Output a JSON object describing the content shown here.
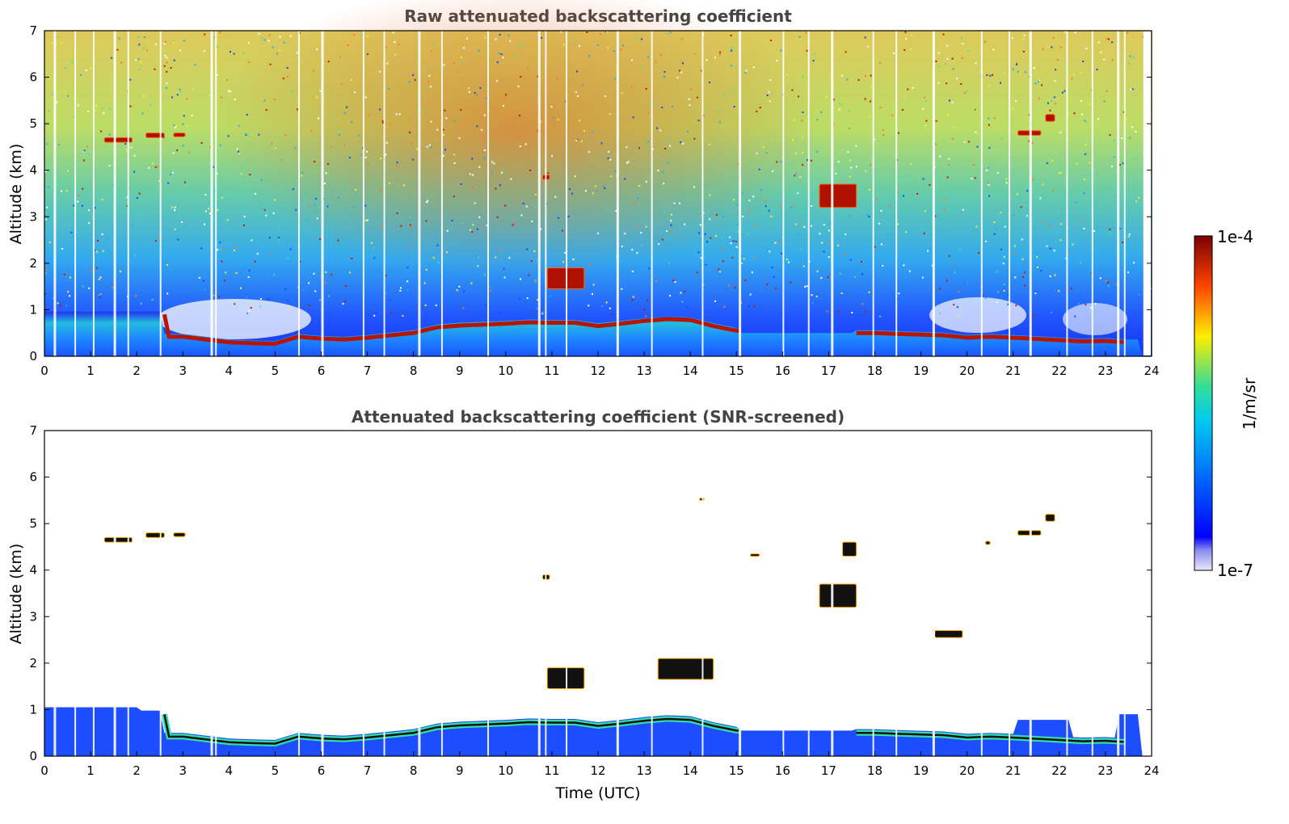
{
  "chart_data": [
    {
      "type": "heatmap",
      "title": "Raw attenuated backscattering coefficient",
      "xlabel": "",
      "ylabel": "Altitude (km)",
      "xlim": [
        0,
        24
      ],
      "ylim": [
        0,
        7
      ],
      "x_ticks": [
        "0",
        "1",
        "2",
        "3",
        "4",
        "5",
        "6",
        "7",
        "8",
        "9",
        "10",
        "11",
        "12",
        "13",
        "14",
        "15",
        "16",
        "17",
        "18",
        "19",
        "20",
        "21",
        "22",
        "23",
        "24"
      ],
      "y_ticks": [
        "0",
        "1",
        "2",
        "3",
        "4",
        "5",
        "6",
        "7"
      ],
      "boundary_layer_top_km": [
        [
          2.6,
          0.42
        ],
        [
          3.0,
          0.42
        ],
        [
          3.5,
          0.36
        ],
        [
          4.0,
          0.3
        ],
        [
          4.5,
          0.28
        ],
        [
          5.0,
          0.27
        ],
        [
          5.5,
          0.42
        ],
        [
          6.0,
          0.38
        ],
        [
          6.5,
          0.36
        ],
        [
          7.0,
          0.4
        ],
        [
          7.5,
          0.45
        ],
        [
          8.0,
          0.5
        ],
        [
          8.5,
          0.62
        ],
        [
          9.0,
          0.66
        ],
        [
          9.5,
          0.68
        ],
        [
          10.0,
          0.7
        ],
        [
          10.5,
          0.73
        ],
        [
          11.0,
          0.72
        ],
        [
          11.5,
          0.72
        ],
        [
          12.0,
          0.65
        ],
        [
          12.5,
          0.7
        ],
        [
          13.0,
          0.76
        ],
        [
          13.5,
          0.8
        ],
        [
          14.0,
          0.78
        ],
        [
          14.5,
          0.65
        ],
        [
          15.0,
          0.55
        ],
        [
          17.5,
          0.5
        ],
        [
          18.0,
          0.5
        ],
        [
          18.5,
          0.48
        ],
        [
          19.5,
          0.45
        ],
        [
          20.0,
          0.4
        ],
        [
          20.5,
          0.42
        ],
        [
          21.0,
          0.4
        ],
        [
          22.5,
          0.32
        ],
        [
          23.0,
          0.33
        ],
        [
          23.5,
          0.3
        ]
      ],
      "cloud_features": [
        {
          "time": [
            1.3,
            1.9
          ],
          "altitude_km": [
            4.6,
            4.7
          ]
        },
        {
          "time": [
            2.2,
            2.6
          ],
          "altitude_km": [
            4.7,
            4.8
          ]
        },
        {
          "time": [
            2.8,
            3.05
          ],
          "altitude_km": [
            4.72,
            4.8
          ]
        },
        {
          "time": [
            10.8,
            10.95
          ],
          "altitude_km": [
            3.8,
            3.9
          ]
        },
        {
          "time": [
            10.9,
            11.7
          ],
          "altitude_km": [
            1.45,
            1.9
          ]
        },
        {
          "time": [
            16.8,
            17.6
          ],
          "altitude_km": [
            3.2,
            3.7
          ]
        },
        {
          "time": [
            21.1,
            21.6
          ],
          "altitude_km": [
            4.75,
            4.85
          ]
        },
        {
          "time": [
            21.7,
            21.9
          ],
          "altitude_km": [
            5.05,
            5.2
          ]
        }
      ]
    },
    {
      "type": "heatmap",
      "title": "Attenuated backscattering coefficient (SNR-screened)",
      "xlabel": "Time (UTC)",
      "ylabel": "Altitude (km)",
      "xlim": [
        0,
        24
      ],
      "ylim": [
        0,
        7
      ],
      "x_ticks": [
        "0",
        "1",
        "2",
        "3",
        "4",
        "5",
        "6",
        "7",
        "8",
        "9",
        "10",
        "11",
        "12",
        "13",
        "14",
        "15",
        "16",
        "17",
        "18",
        "19",
        "20",
        "21",
        "22",
        "23",
        "24"
      ],
      "y_ticks": [
        "0",
        "1",
        "2",
        "3",
        "4",
        "5",
        "6",
        "7"
      ],
      "cloud_features": [
        {
          "time": [
            1.3,
            1.9
          ],
          "altitude_km": [
            4.6,
            4.7
          ]
        },
        {
          "time": [
            2.2,
            2.6
          ],
          "altitude_km": [
            4.7,
            4.8
          ]
        },
        {
          "time": [
            2.8,
            3.05
          ],
          "altitude_km": [
            4.72,
            4.8
          ]
        },
        {
          "time": [
            10.8,
            10.95
          ],
          "altitude_km": [
            3.8,
            3.9
          ]
        },
        {
          "time": [
            10.9,
            11.7
          ],
          "altitude_km": [
            1.45,
            1.9
          ]
        },
        {
          "time": [
            14.2,
            14.3
          ],
          "altitude_km": [
            5.5,
            5.55
          ]
        },
        {
          "time": [
            15.3,
            15.5
          ],
          "altitude_km": [
            4.3,
            4.35
          ]
        },
        {
          "time": [
            16.8,
            17.6
          ],
          "altitude_km": [
            3.2,
            3.7
          ]
        },
        {
          "time": [
            17.3,
            17.6
          ],
          "altitude_km": [
            4.3,
            4.6
          ]
        },
        {
          "time": [
            20.4,
            20.5
          ],
          "altitude_km": [
            4.55,
            4.62
          ]
        },
        {
          "time": [
            21.1,
            21.6
          ],
          "altitude_km": [
            4.75,
            4.85
          ]
        },
        {
          "time": [
            21.7,
            21.9
          ],
          "altitude_km": [
            5.05,
            5.2
          ]
        },
        {
          "time": [
            19.3,
            19.9
          ],
          "altitude_km": [
            2.55,
            2.7
          ]
        },
        {
          "time": [
            13.3,
            14.5
          ],
          "altitude_km": [
            1.65,
            2.1
          ]
        }
      ]
    }
  ],
  "colorbar": {
    "label": "1/m/sr",
    "max_label": "1e-4",
    "min_label": "1e-7",
    "scale": "log",
    "colormap": [
      "#e8e8f8",
      "#0000ff",
      "#00ccee",
      "#33dd99",
      "#ffee00",
      "#ff4400",
      "#7a0000"
    ]
  }
}
